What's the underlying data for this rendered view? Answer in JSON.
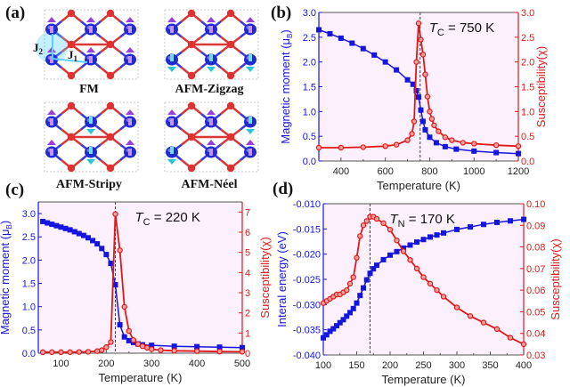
{
  "panel_labels": {
    "a": "(a)",
    "b": "(b)",
    "c": "(c)",
    "d": "(d)"
  },
  "structures": {
    "labels": [
      "FM",
      "AFM-Zigzag",
      "AFM-Stripy",
      "AFM-Néel"
    ],
    "j1": "J",
    "j1_sub": "1",
    "j2": "J",
    "j2_sub": "2",
    "colors": {
      "metal": "#1f2bd1",
      "ligand": "#e03030",
      "bond_metal": "#3a3ad8",
      "bond_ligand": "#d83838",
      "spin_up": "#9a3ddb",
      "spin_down": "#29c6d6",
      "highlight": "#5ad0ff"
    }
  },
  "colors": {
    "blue": "#1515e0",
    "red": "#e01818",
    "bg": "#fbf0fb",
    "dash": "#444444"
  },
  "chart_data": [
    {
      "id": "b",
      "type": "line",
      "xlabel": "Temperature (K)",
      "ylabel_left": "Magnetic moment (μ",
      "ylabel_left_sub": "B",
      "ylabel_left_end": ")",
      "ylabel_right": "Susceptibility(χ)",
      "annotation": {
        "T": "T",
        "sub": "C",
        "text": " = 750 K",
        "x": 757
      },
      "xlim": [
        300,
        1200
      ],
      "ylim_left": [
        0,
        3
      ],
      "ylim_right": [
        0,
        3
      ],
      "xticks": [
        400,
        600,
        800,
        1000,
        1200
      ],
      "yticks_left": [
        "0.0",
        "0.5",
        "1.0",
        "1.5",
        "2.0",
        "2.5",
        "3.0"
      ],
      "yticks_right": [
        "0.0",
        "0.5",
        "1.0",
        "1.5",
        "2.0",
        "2.5",
        "3.0"
      ],
      "series": [
        {
          "name": "Magnetic moment",
          "axis": "left",
          "marker": "square",
          "x": [
            300,
            350,
            400,
            450,
            500,
            550,
            600,
            650,
            700,
            725,
            740,
            750,
            760,
            770,
            780,
            800,
            830,
            870,
            920,
            1000,
            1100,
            1200
          ],
          "y": [
            2.65,
            2.57,
            2.48,
            2.38,
            2.27,
            2.14,
            2.0,
            1.84,
            1.64,
            1.55,
            1.42,
            1.29,
            1.03,
            0.8,
            0.63,
            0.48,
            0.37,
            0.29,
            0.24,
            0.2,
            0.17,
            0.15
          ]
        },
        {
          "name": "Susceptibility",
          "axis": "right",
          "marker": "circle",
          "x": [
            300,
            400,
            500,
            600,
            650,
            700,
            720,
            730,
            740,
            750,
            760,
            770,
            780,
            790,
            800,
            810,
            820,
            840,
            870,
            900,
            950,
            1000,
            1100,
            1200
          ],
          "y": [
            0.27,
            0.27,
            0.28,
            0.3,
            0.33,
            0.42,
            0.55,
            0.8,
            2.0,
            2.78,
            2.45,
            2.15,
            1.75,
            1.3,
            1.0,
            0.85,
            0.72,
            0.6,
            0.48,
            0.42,
            0.37,
            0.35,
            0.32,
            0.3
          ]
        }
      ]
    },
    {
      "id": "c",
      "type": "line",
      "xlabel": "Temperature (K)",
      "ylabel_left": "Magnetic moment (μ",
      "ylabel_left_sub": "B",
      "ylabel_left_end": ")",
      "ylabel_right": "Susceptibility(χ)",
      "annotation": {
        "T": "T",
        "sub": "C",
        "text": " = 220 K",
        "x": 220
      },
      "xlim": [
        50,
        500
      ],
      "ylim_left": [
        0,
        3.25
      ],
      "ylim_right": [
        0,
        7.5
      ],
      "xticks": [
        100,
        200,
        300,
        400,
        500
      ],
      "yticks_left": [
        "0.0",
        "0.5",
        "1.0",
        "1.5",
        "2.0",
        "2.5",
        "3.0"
      ],
      "yticks_right": [
        "0",
        "1",
        "2",
        "3",
        "4",
        "5",
        "6",
        "7"
      ],
      "series": [
        {
          "name": "Magnetic moment",
          "axis": "left",
          "marker": "square",
          "x": [
            60,
            70,
            80,
            90,
            100,
            110,
            120,
            130,
            140,
            150,
            160,
            170,
            180,
            190,
            200,
            210,
            220,
            230,
            240,
            250,
            260,
            270,
            280,
            300,
            350,
            400,
            450,
            500
          ],
          "y": [
            2.83,
            2.8,
            2.77,
            2.74,
            2.71,
            2.68,
            2.65,
            2.61,
            2.57,
            2.53,
            2.48,
            2.42,
            2.35,
            2.25,
            2.12,
            1.93,
            1.47,
            0.61,
            0.35,
            0.27,
            0.23,
            0.2,
            0.18,
            0.17,
            0.15,
            0.14,
            0.13,
            0.12
          ]
        },
        {
          "name": "Susceptibility",
          "axis": "right",
          "marker": "circle",
          "x": [
            60,
            80,
            100,
            120,
            140,
            160,
            180,
            190,
            200,
            210,
            220,
            230,
            240,
            250,
            260,
            270,
            280,
            290,
            300,
            320,
            350,
            400,
            450,
            500
          ],
          "y": [
            0.05,
            0.05,
            0.05,
            0.05,
            0.06,
            0.07,
            0.1,
            0.15,
            0.3,
            0.55,
            6.9,
            5.1,
            2.3,
            1.1,
            0.65,
            0.45,
            0.35,
            0.27,
            0.2,
            0.15,
            0.12,
            0.1,
            0.08,
            0.07
          ]
        }
      ]
    },
    {
      "id": "d",
      "type": "line",
      "xlabel": "Temperature (K)",
      "ylabel_left": "Interal energy (eV)",
      "ylabel_right": "Susceptibility(χ)",
      "annotation": {
        "T": "T",
        "sub": "N",
        "text": " = 170 K",
        "x": 170
      },
      "xlim": [
        100,
        400
      ],
      "ylim_left": [
        -0.04,
        -0.01
      ],
      "ylim_right": [
        0.03,
        0.1
      ],
      "xticks": [
        100,
        150,
        200,
        250,
        300,
        350,
        400
      ],
      "yticks_left": [
        "-0.040",
        "-0.035",
        "-0.030",
        "-0.025",
        "-0.020",
        "-0.015",
        "-0.010"
      ],
      "yticks_right": [
        "0.03",
        "0.04",
        "0.05",
        "0.06",
        "0.07",
        "0.08",
        "0.09",
        "0.10"
      ],
      "series": [
        {
          "name": "Interal energy",
          "axis": "left",
          "marker": "square",
          "x": [
            100,
            105,
            110,
            115,
            120,
            125,
            130,
            135,
            140,
            145,
            150,
            155,
            160,
            165,
            170,
            175,
            180,
            190,
            200,
            210,
            220,
            230,
            240,
            250,
            260,
            270,
            280,
            300,
            320,
            340,
            360,
            380,
            400
          ],
          "y": [
            -0.0366,
            -0.036,
            -0.0353,
            -0.0348,
            -0.0342,
            -0.0336,
            -0.033,
            -0.0323,
            -0.0316,
            -0.0308,
            -0.0297,
            -0.0282,
            -0.0267,
            -0.0251,
            -0.0238,
            -0.0229,
            -0.0222,
            -0.0211,
            -0.0202,
            -0.0195,
            -0.0188,
            -0.0182,
            -0.0176,
            -0.0171,
            -0.0166,
            -0.0162,
            -0.0158,
            -0.0151,
            -0.0146,
            -0.0141,
            -0.0137,
            -0.0134,
            -0.0131
          ]
        },
        {
          "name": "Susceptibility",
          "axis": "right",
          "marker": "circle",
          "x": [
            100,
            105,
            110,
            115,
            120,
            125,
            130,
            135,
            140,
            145,
            150,
            155,
            160,
            165,
            170,
            175,
            180,
            190,
            200,
            210,
            220,
            230,
            240,
            250,
            260,
            270,
            280,
            300,
            320,
            340,
            360,
            380,
            400
          ],
          "y": [
            0.054,
            0.055,
            0.056,
            0.057,
            0.058,
            0.058,
            0.059,
            0.06,
            0.063,
            0.066,
            0.075,
            0.085,
            0.09,
            0.092,
            0.094,
            0.094,
            0.093,
            0.091,
            0.088,
            0.083,
            0.078,
            0.074,
            0.07,
            0.066,
            0.063,
            0.06,
            0.057,
            0.052,
            0.048,
            0.045,
            0.042,
            0.038,
            0.035
          ]
        }
      ]
    }
  ]
}
